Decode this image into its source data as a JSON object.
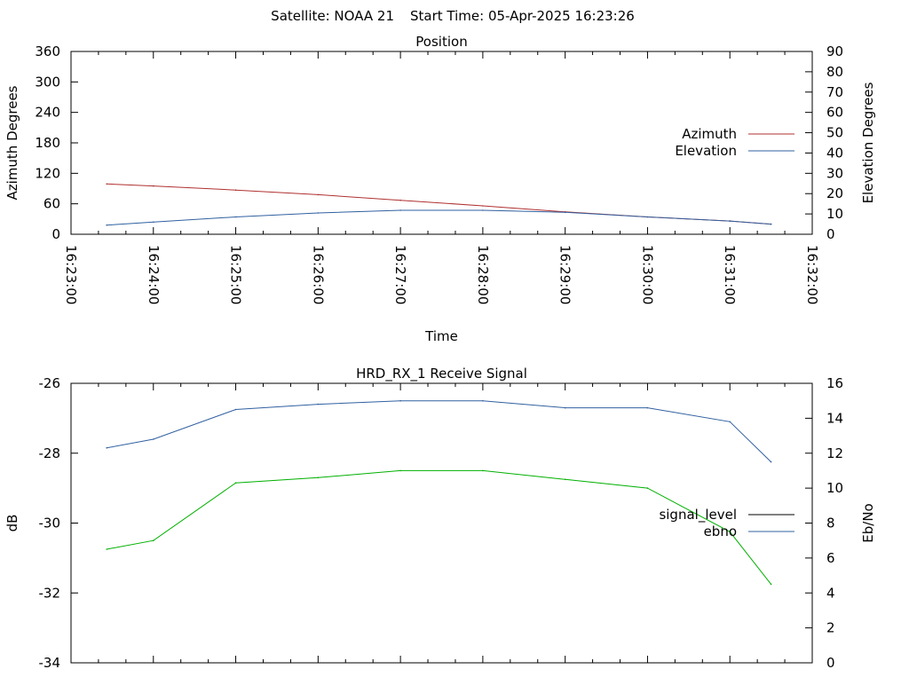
{
  "header": {
    "satellite": "Satellite: NOAA 21",
    "start_time": "Start Time: 05-Apr-2025 16:23:26"
  },
  "chart_data": [
    {
      "type": "line",
      "title": "Position",
      "xlabel": "Time",
      "ylabel": "Azimuth Degrees",
      "y2label": "Elevation Degrees",
      "x_ticks": [
        "16:23:00",
        "16:24:00",
        "16:25:00",
        "16:26:00",
        "16:27:00",
        "16:28:00",
        "16:29:00",
        "16:30:00",
        "16:31:00",
        "16:32:00"
      ],
      "xlim": [
        "16:23:00",
        "16:32:00"
      ],
      "ylim": [
        0,
        360
      ],
      "y_ticks": [
        "0",
        "60",
        "120",
        "180",
        "240",
        "300",
        "360"
      ],
      "y2lim": [
        0,
        90
      ],
      "y2_ticks": [
        "0",
        "10",
        "20",
        "30",
        "40",
        "50",
        "60",
        "70",
        "80",
        "90"
      ],
      "grid": false,
      "legend_position": "right",
      "series": [
        {
          "name": "Azimuth",
          "axis": "left",
          "color": "#b03030",
          "x": [
            "16:23:26",
            "16:24:00",
            "16:25:00",
            "16:26:00",
            "16:27:00",
            "16:28:00",
            "16:29:00",
            "16:30:00",
            "16:31:00",
            "16:31:30"
          ],
          "values": [
            99,
            95,
            87,
            78,
            67,
            56,
            44,
            34,
            26,
            20
          ]
        },
        {
          "name": "Elevation",
          "axis": "right",
          "color": "#3060a0",
          "x": [
            "16:23:26",
            "16:24:00",
            "16:25:00",
            "16:26:00",
            "16:27:00",
            "16:28:00",
            "16:29:00",
            "16:30:00",
            "16:31:00",
            "16:31:30"
          ],
          "values": [
            4.5,
            6,
            8.5,
            10.5,
            11.8,
            11.8,
            10.8,
            8.5,
            6.5,
            5
          ]
        }
      ]
    },
    {
      "type": "line",
      "title": "HRD_RX_1 Receive Signal",
      "ylabel": "dB",
      "y2label": "Eb/No",
      "xlim": [
        "16:23:00",
        "16:32:00"
      ],
      "ylim": [
        -34,
        -26
      ],
      "y_ticks": [
        "-34",
        "-32",
        "-30",
        "-28",
        "-26"
      ],
      "y2lim": [
        0,
        16
      ],
      "y2_ticks": [
        "0",
        "2",
        "4",
        "6",
        "8",
        "10",
        "12",
        "14",
        "16"
      ],
      "grid": false,
      "legend_position": "right",
      "series": [
        {
          "name": "signal_level",
          "axis": "left",
          "color": "#000000",
          "x": [],
          "values": []
        },
        {
          "name": "ebno",
          "axis": "right",
          "color": "#3060a0",
          "x": [
            "16:23:26",
            "16:24:00",
            "16:25:00",
            "16:26:00",
            "16:27:00",
            "16:28:00",
            "16:29:00",
            "16:30:00",
            "16:31:00",
            "16:31:30"
          ],
          "values": [
            12.3,
            12.8,
            14.5,
            14.8,
            15.0,
            15.0,
            14.6,
            14.6,
            13.8,
            11.5
          ]
        },
        {
          "name": "",
          "axis": "right",
          "color": "#00b000",
          "x": [
            "16:23:26",
            "16:24:00",
            "16:25:00",
            "16:26:00",
            "16:27:00",
            "16:28:00",
            "16:29:00",
            "16:30:00",
            "16:31:00",
            "16:31:30"
          ],
          "values": [
            6.5,
            7,
            10.3,
            10.6,
            11.0,
            11.0,
            10.5,
            10.0,
            7.5,
            4.5
          ]
        }
      ]
    }
  ]
}
